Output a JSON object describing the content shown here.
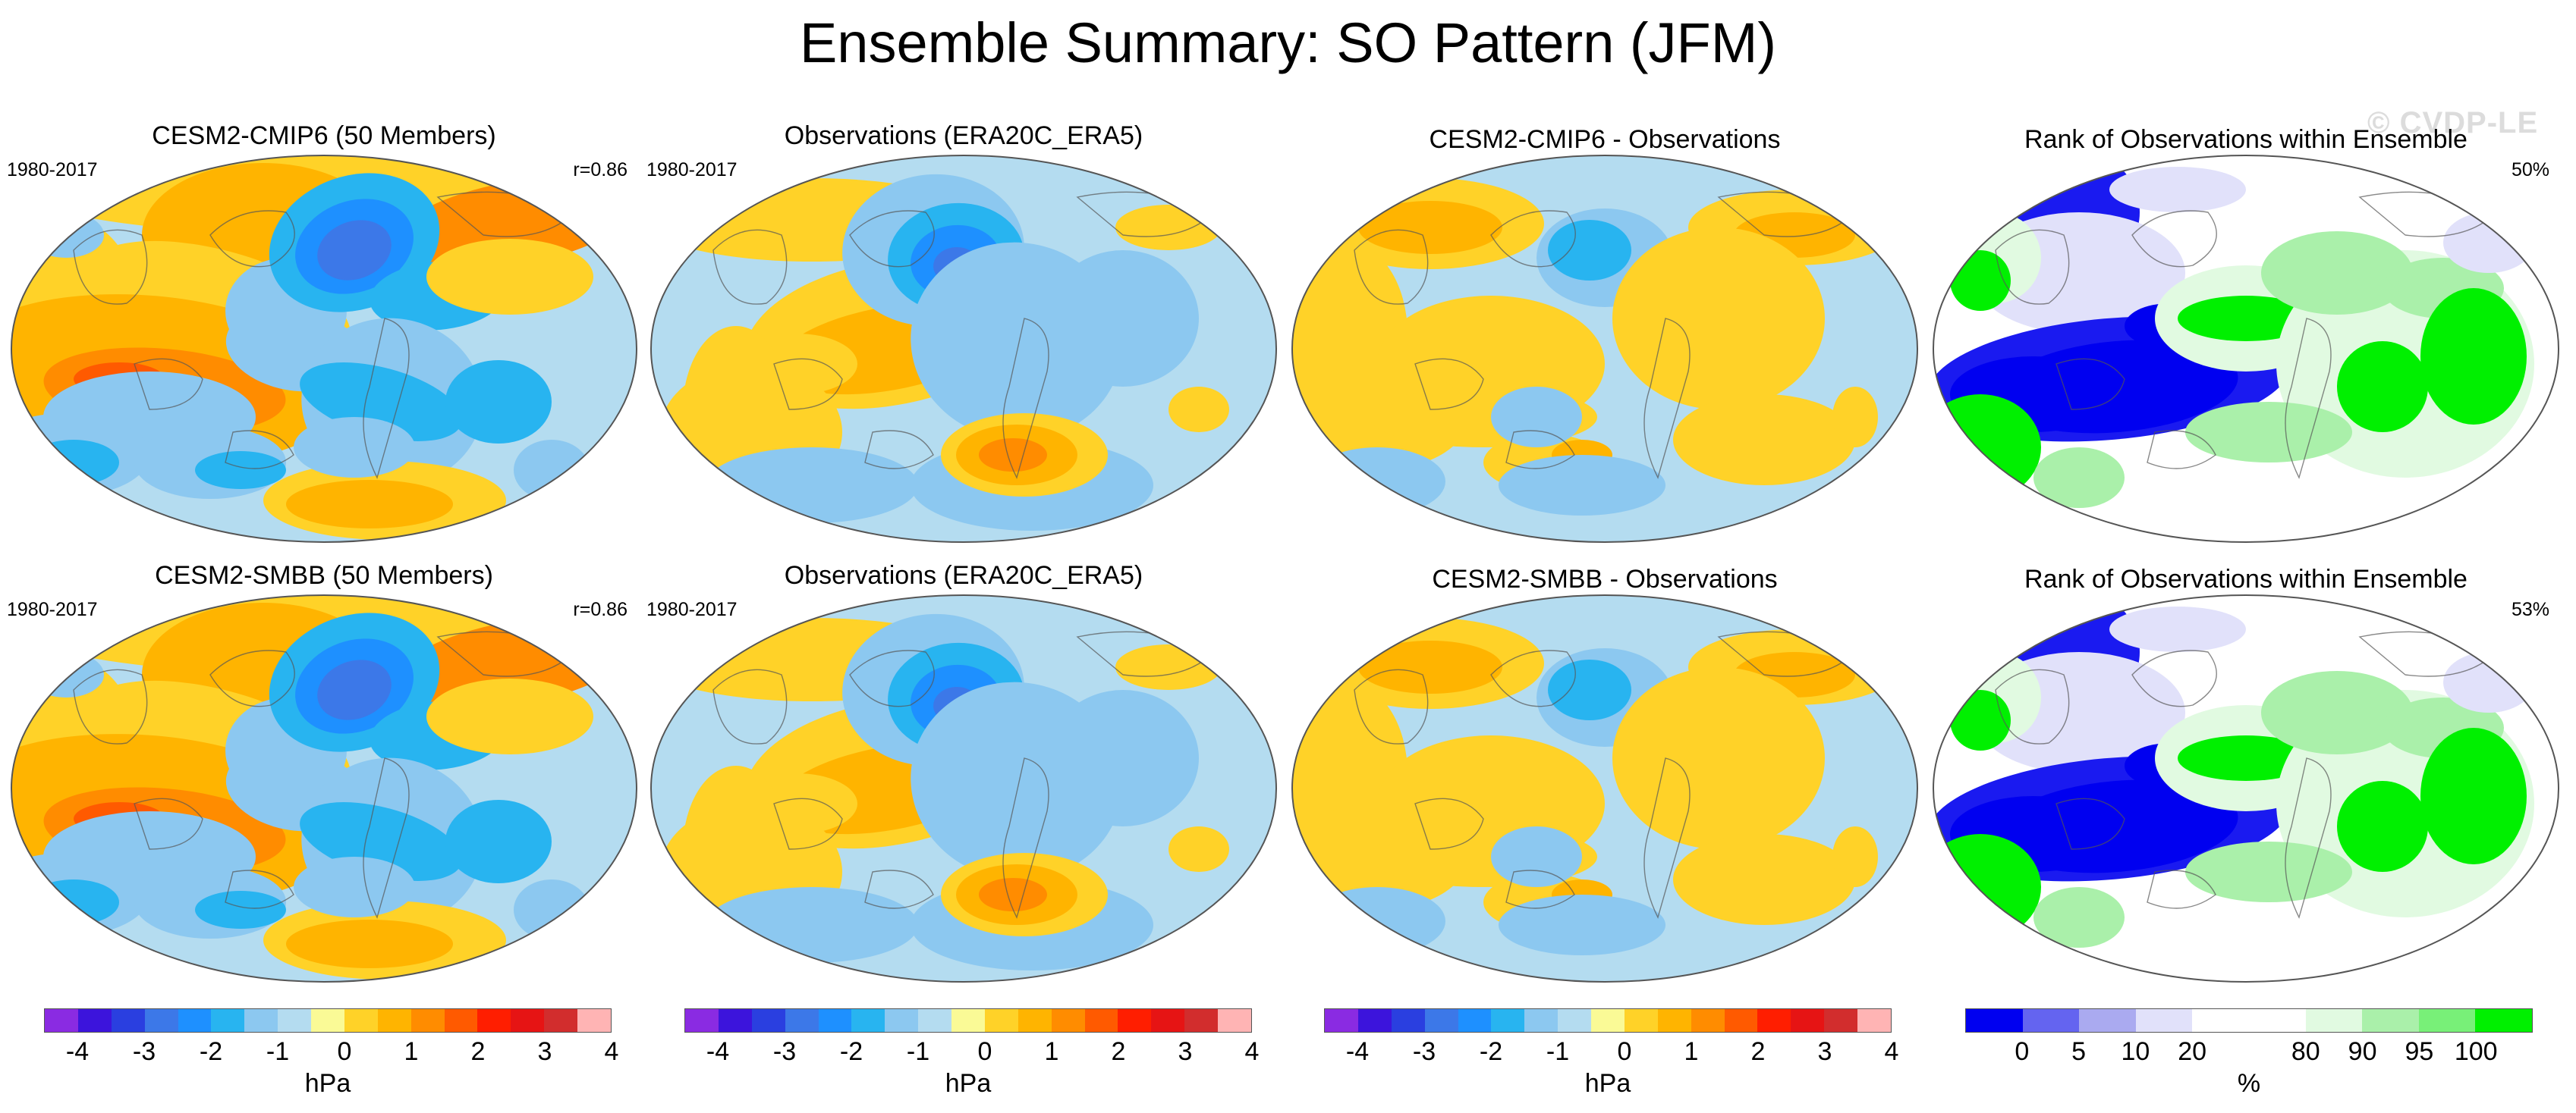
{
  "title": "Ensemble Summary: SO Pattern (JFM)",
  "watermark": "© CVDP-LE",
  "panels": [
    {
      "title": "CESM2-CMIP6 (50 Members)",
      "left_label": "1980-2017",
      "right_label": "r=0.86",
      "kind": "pattern",
      "variant": "model"
    },
    {
      "title": "Observations (ERA20C_ERA5)",
      "left_label": "1980-2017",
      "right_label": "",
      "kind": "pattern",
      "variant": "obs"
    },
    {
      "title": "CESM2-CMIP6 - Observations",
      "left_label": "",
      "right_label": "",
      "kind": "difference",
      "variant": "diff"
    },
    {
      "title": "Rank of Observations within Ensemble",
      "left_label": "",
      "right_label": "50%",
      "kind": "rank",
      "variant": "rank"
    },
    {
      "title": "CESM2-SMBB (50 Members)",
      "left_label": "1980-2017",
      "right_label": "r=0.86",
      "kind": "pattern",
      "variant": "model"
    },
    {
      "title": "Observations (ERA20C_ERA5)",
      "left_label": "1980-2017",
      "right_label": "",
      "kind": "pattern",
      "variant": "obs"
    },
    {
      "title": "CESM2-SMBB - Observations",
      "left_label": "",
      "right_label": "",
      "kind": "difference",
      "variant": "diff"
    },
    {
      "title": "Rank of Observations within Ensemble",
      "left_label": "",
      "right_label": "53%",
      "kind": "rank",
      "variant": "rank"
    }
  ],
  "colorbars": [
    {
      "unit": "hPa",
      "ticks": [
        "-4",
        "-3",
        "-2",
        "-1",
        "0",
        "1",
        "2",
        "3",
        "4"
      ],
      "colors": [
        "#8a2be2",
        "#3c14dc",
        "#2a3fe0",
        "#3c78e8",
        "#1e90ff",
        "#28b4f0",
        "#8cc8f0",
        "#b4dcf0",
        "#fafa96",
        "#ffd228",
        "#ffb400",
        "#ff8c00",
        "#ff5a00",
        "#ff1e00",
        "#e61414",
        "#d22d2d",
        "#ffb4b4"
      ]
    },
    {
      "unit": "hPa",
      "ticks": [
        "-4",
        "-3",
        "-2",
        "-1",
        "0",
        "1",
        "2",
        "3",
        "4"
      ],
      "colors": [
        "#8a2be2",
        "#3c14dc",
        "#2a3fe0",
        "#3c78e8",
        "#1e90ff",
        "#28b4f0",
        "#8cc8f0",
        "#b4dcf0",
        "#fafa96",
        "#ffd228",
        "#ffb400",
        "#ff8c00",
        "#ff5a00",
        "#ff1e00",
        "#e61414",
        "#d22d2d",
        "#ffb4b4"
      ]
    },
    {
      "unit": "hPa",
      "ticks": [
        "-4",
        "-3",
        "-2",
        "-1",
        "0",
        "1",
        "2",
        "3",
        "4"
      ],
      "colors": [
        "#8a2be2",
        "#3c14dc",
        "#2a3fe0",
        "#3c78e8",
        "#1e90ff",
        "#28b4f0",
        "#8cc8f0",
        "#b4dcf0",
        "#fafa96",
        "#ffd228",
        "#ffb400",
        "#ff8c00",
        "#ff5a00",
        "#ff1e00",
        "#e61414",
        "#d22d2d",
        "#ffb4b4"
      ]
    },
    {
      "unit": "%",
      "ticks": [
        "0",
        "5",
        "10",
        "20",
        "80",
        "90",
        "95",
        "100"
      ],
      "colors": [
        "#0000f0",
        "#6464f0",
        "#aaaaf0",
        "#e1e1fa",
        "#ffffff",
        "#ffffff",
        "#e1fae1",
        "#aaf0aa",
        "#78f078",
        "#00f000"
      ]
    }
  ],
  "chart_data": [
    {
      "type": "heatmap",
      "title": "CESM2-CMIP6 (50 Members)",
      "period": "1980-2017",
      "pattern_correlation": 0.86,
      "units": "hPa",
      "range": [
        -4.5,
        4.5
      ]
    },
    {
      "type": "heatmap",
      "title": "Observations (ERA20C_ERA5)",
      "period": "1980-2017",
      "units": "hPa",
      "range": [
        -4.5,
        4.5
      ]
    },
    {
      "type": "heatmap",
      "title": "CESM2-CMIP6 - Observations",
      "units": "hPa",
      "range": [
        -4.5,
        4.5
      ]
    },
    {
      "type": "heatmap",
      "title": "Rank of Observations within Ensemble",
      "summary_percent": 50,
      "units": "%",
      "levels": [
        0,
        5,
        10,
        20,
        80,
        90,
        95,
        100
      ]
    },
    {
      "type": "heatmap",
      "title": "CESM2-SMBB (50 Members)",
      "period": "1980-2017",
      "pattern_correlation": 0.86,
      "units": "hPa",
      "range": [
        -4.5,
        4.5
      ]
    },
    {
      "type": "heatmap",
      "title": "Observations (ERA20C_ERA5)",
      "period": "1980-2017",
      "units": "hPa",
      "range": [
        -4.5,
        4.5
      ]
    },
    {
      "type": "heatmap",
      "title": "CESM2-SMBB - Observations",
      "units": "hPa",
      "range": [
        -4.5,
        4.5
      ]
    },
    {
      "type": "heatmap",
      "title": "Rank of Observations within Ensemble",
      "summary_percent": 53,
      "units": "%",
      "levels": [
        0,
        5,
        10,
        20,
        80,
        90,
        95,
        100
      ]
    }
  ]
}
